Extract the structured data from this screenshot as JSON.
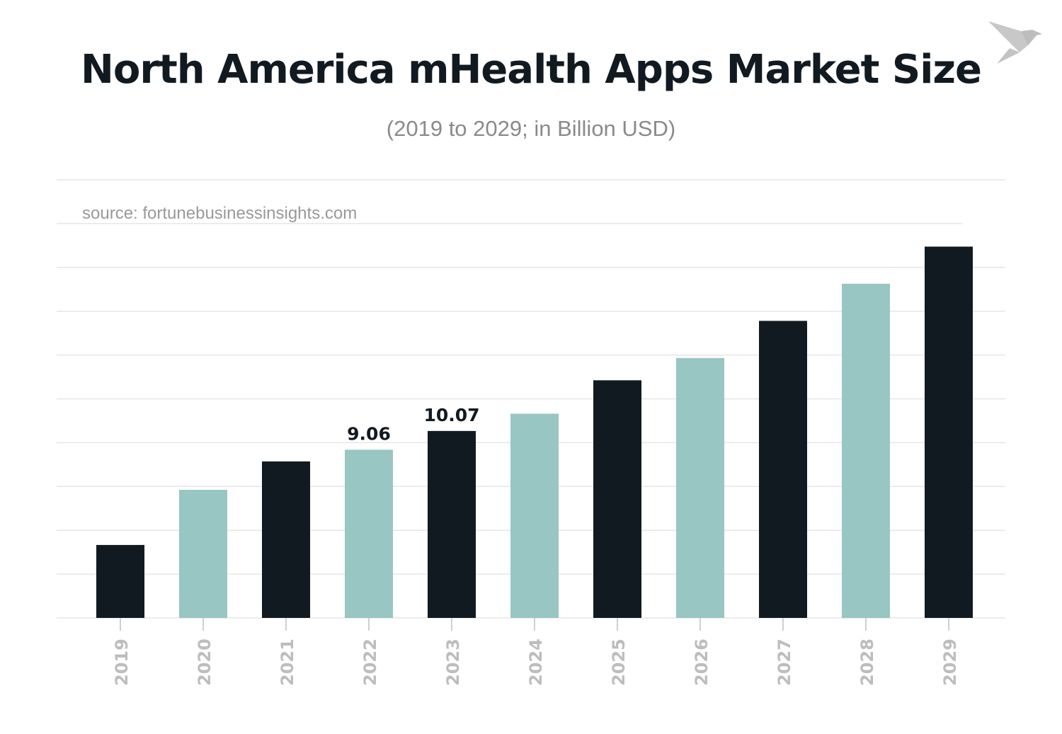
{
  "chart_data": {
    "type": "bar",
    "title": "North America mHealth Apps Market Size",
    "subtitle": "(2019 to 2029; in Billion USD)",
    "source": "source: fortunebusinessinsights.com",
    "categories": [
      "2019",
      "2020",
      "2021",
      "2022",
      "2023",
      "2024",
      "2025",
      "2026",
      "2027",
      "2028",
      "2029"
    ],
    "values": [
      3.93,
      6.9,
      8.43,
      9.06,
      10.07,
      11.0,
      12.8,
      14.0,
      16.0,
      18.0,
      20.0
    ],
    "data_labels": {
      "2022": "9.06",
      "2023": "10.07"
    },
    "colors": [
      "#121a21",
      "#97c6c3"
    ],
    "ylim": [
      0,
      23.6
    ],
    "grid": true,
    "y_tick_labels": false
  },
  "logo": {
    "icon": "origami-bird-icon",
    "color": "#c4c4c4"
  }
}
